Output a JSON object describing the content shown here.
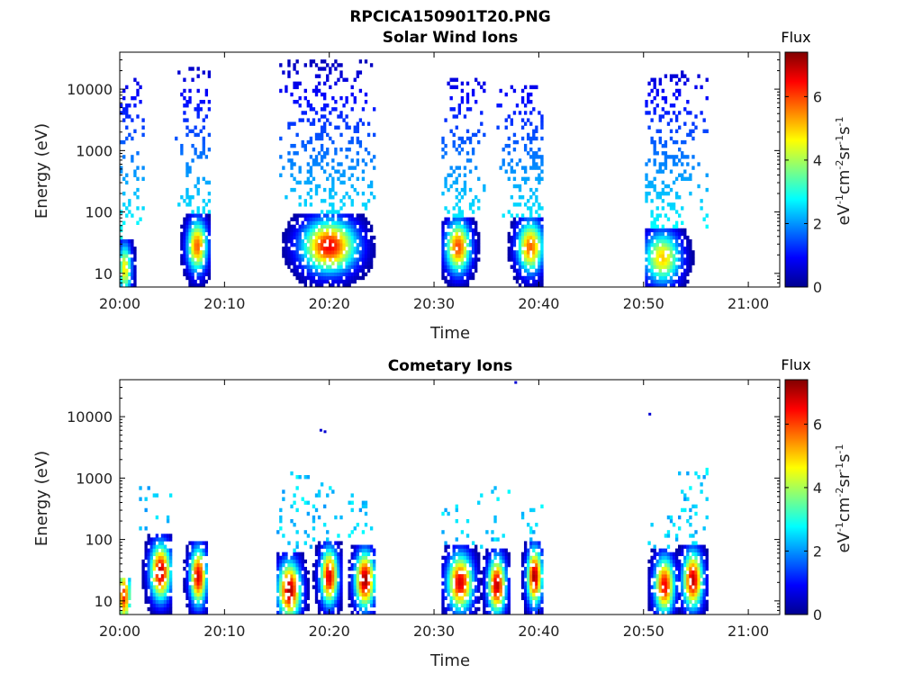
{
  "header": {
    "title": "RPCICA150901T20.PNG"
  },
  "chart_data": [
    {
      "type": "heatmap",
      "title": "Solar Wind Ions",
      "xlabel": "Time",
      "ylabel": "Energy (eV)",
      "x_ticks": [
        "20:00",
        "20:10",
        "20:20",
        "20:30",
        "20:40",
        "20:50",
        "21:00"
      ],
      "y_ticks": [
        "10",
        "100",
        "1000",
        "10000"
      ],
      "y_scale": "log",
      "xlim": [
        "20:00",
        "21:03"
      ],
      "ylim": [
        6,
        40000
      ],
      "colorbar": {
        "title": "Flux",
        "label": "eV-1cm-2sr-1s-1",
        "ticks": [
          "0",
          "2",
          "4",
          "6"
        ],
        "range": [
          0,
          7.4
        ],
        "colormap": "jet"
      },
      "bursts": [
        {
          "start_min": 0.0,
          "end_min": 2.3,
          "e_low": 6,
          "e_high": 15000,
          "core_min": 0.5,
          "core_energy": 12,
          "peak": 4.8
        },
        {
          "start_min": 5.2,
          "end_min": 8.6,
          "e_low": 6,
          "e_high": 22000,
          "core_min": 7.4,
          "core_energy": 28,
          "peak": 5.8
        },
        {
          "start_min": 15.3,
          "end_min": 24.3,
          "e_low": 6,
          "e_high": 29000,
          "core_min": 20.0,
          "core_energy": 28,
          "peak": 6.6
        },
        {
          "start_min": 30.6,
          "end_min": 34.8,
          "e_low": 6,
          "e_high": 15000,
          "core_min": 32.3,
          "core_energy": 27,
          "peak": 6.0
        },
        {
          "start_min": 36.0,
          "end_min": 40.4,
          "e_low": 6,
          "e_high": 11000,
          "core_min": 39.2,
          "core_energy": 27,
          "peak": 5.8
        },
        {
          "start_min": 50.2,
          "end_min": 56.3,
          "e_low": 6,
          "e_high": 19000,
          "core_min": 51.8,
          "core_energy": 18,
          "peak": 5.0
        }
      ]
    },
    {
      "type": "heatmap",
      "title": "Cometary Ions",
      "xlabel": "Time",
      "ylabel": "Energy (eV)",
      "x_ticks": [
        "20:00",
        "20:10",
        "20:20",
        "20:30",
        "20:40",
        "20:50",
        "21:00"
      ],
      "y_ticks": [
        "10",
        "100",
        "1000",
        "10000"
      ],
      "y_scale": "log",
      "xlim": [
        "20:00",
        "21:03"
      ],
      "ylim": [
        6,
        40000
      ],
      "colorbar": {
        "title": "Flux",
        "label": "eV-1cm-2sr-1s-1",
        "ticks": [
          "0",
          "2",
          "4",
          "6"
        ],
        "range": [
          0,
          7.4
        ],
        "colormap": "jet"
      },
      "bursts": [
        {
          "start_min": 0.0,
          "end_min": 1.0,
          "e_low": 6,
          "e_high": 25,
          "core_min": 0.4,
          "core_energy": 12,
          "peak": 6.2
        },
        {
          "start_min": 1.8,
          "end_min": 4.9,
          "e_low": 6,
          "e_high": 750,
          "core_min": 3.9,
          "core_energy": 30,
          "peak": 7.0
        },
        {
          "start_min": 6.0,
          "end_min": 8.5,
          "e_low": 6,
          "e_high": 100,
          "core_min": 7.5,
          "core_energy": 25,
          "peak": 6.8
        },
        {
          "start_min": 14.9,
          "end_min": 18.3,
          "e_low": 6,
          "e_high": 1200,
          "core_min": 16.2,
          "core_energy": 15,
          "peak": 7.2
        },
        {
          "start_min": 18.5,
          "end_min": 21.2,
          "e_low": 6,
          "e_high": 1000,
          "core_min": 20.0,
          "core_energy": 25,
          "peak": 6.8
        },
        {
          "start_min": 21.5,
          "end_min": 24.5,
          "e_low": 6,
          "e_high": 550,
          "core_min": 23.4,
          "core_energy": 22,
          "peak": 7.2
        },
        {
          "start_min": 30.7,
          "end_min": 34.5,
          "e_low": 6,
          "e_high": 450,
          "core_min": 32.5,
          "core_energy": 20,
          "peak": 6.8
        },
        {
          "start_min": 34.5,
          "end_min": 37.2,
          "e_low": 6,
          "e_high": 700,
          "core_min": 36.0,
          "core_energy": 18,
          "peak": 7.0
        },
        {
          "start_min": 38.2,
          "end_min": 40.5,
          "e_low": 6,
          "e_high": 350,
          "core_min": 39.6,
          "core_energy": 25,
          "peak": 7.2
        },
        {
          "start_min": 50.2,
          "end_min": 53.2,
          "e_low": 6,
          "e_high": 250,
          "core_min": 52.0,
          "core_energy": 18,
          "peak": 6.6
        },
        {
          "start_min": 53.2,
          "end_min": 56.2,
          "e_low": 6,
          "e_high": 1500,
          "core_min": 54.7,
          "core_energy": 22,
          "peak": 7.0
        }
      ],
      "outliers": [
        {
          "min": 19.2,
          "energy": 6000,
          "value": 0.6
        },
        {
          "min": 19.6,
          "energy": 5700,
          "value": 0.6
        },
        {
          "min": 37.8,
          "energy": 36000,
          "value": 0.6
        },
        {
          "min": 50.6,
          "energy": 11000,
          "value": 0.6
        }
      ]
    }
  ]
}
